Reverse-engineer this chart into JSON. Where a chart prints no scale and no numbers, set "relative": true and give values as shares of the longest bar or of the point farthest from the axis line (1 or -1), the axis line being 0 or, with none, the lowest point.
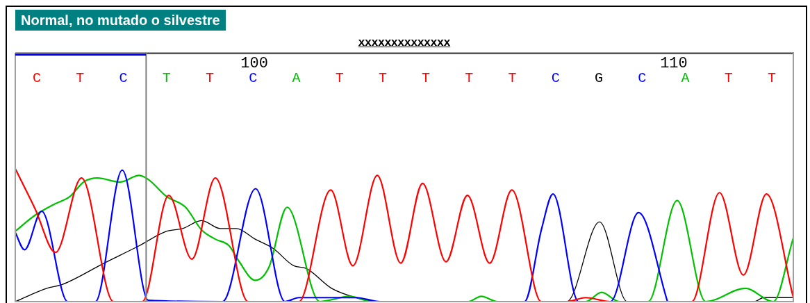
{
  "chart_data": {
    "type": "line",
    "title": "Normal, no mutado o silvestre",
    "subtitle": "xxxxxxxxxxxxxx",
    "relative": true,
    "marker": "none",
    "grid": false,
    "legend": false,
    "xlim": [
      94.3,
      112.85
    ],
    "xticks": [
      100,
      110
    ],
    "series": [
      {
        "color": "#ff0000",
        "x": [
          94.3,
          94.77,
          95.26,
          95.88,
          96.64,
          97.33,
          97.96,
          98.51,
          99.07,
          99.85,
          101.06,
          101.82,
          102.35,
          102.93,
          103.49,
          104.01,
          104.57,
          105.08,
          105.61,
          106.14,
          106.84,
          107.45,
          107.9,
          108.49,
          110.43,
          111.09,
          111.66,
          112.21,
          112.85
        ],
        "values": [
          1.0,
          0.7,
          0.37,
          0.93,
          0,
          0,
          0.8,
          0.32,
          0.93,
          0,
          0,
          0.84,
          0.27,
          0.95,
          0.29,
          0.89,
          0.3,
          0.8,
          0.29,
          0.84,
          0,
          0,
          0.03,
          0,
          0,
          0.82,
          0.2,
          0.81,
          0.03
        ]
      },
      {
        "color": "#0000ff",
        "x": [
          94.3,
          94.52,
          94.93,
          95.55,
          96.21,
          96.85,
          97.47,
          99.24,
          100.03,
          100.73,
          101.06,
          102.43,
          103.0,
          106.44,
          106.85,
          107.12,
          107.73,
          108.49,
          109.16,
          109.85
        ],
        "values": [
          0.52,
          0.39,
          0.68,
          0,
          0,
          0.99,
          0.01,
          0,
          0.85,
          0,
          0.03,
          0.03,
          0,
          0,
          0.55,
          0.81,
          0,
          0,
          0.67,
          0
        ]
      },
      {
        "color": "#00c000",
        "x": [
          94.3,
          94.77,
          95.21,
          95.6,
          95.93,
          96.26,
          96.8,
          97.25,
          97.47,
          97.91,
          98.36,
          98.74,
          99.07,
          99.4,
          99.62,
          100.02,
          100.35,
          100.78,
          101.56,
          102.27,
          102.8,
          105.1,
          105.41,
          105.8,
          107.9,
          108.28,
          108.7,
          109.39,
          110.08,
          110.76,
          111.71,
          112.37,
          112.85
        ],
        "values": [
          0.53,
          0.65,
          0.73,
          0.79,
          0.9,
          0.93,
          0.9,
          0.95,
          0.92,
          0.79,
          0.71,
          0.54,
          0.47,
          0.42,
          0.31,
          0.16,
          0.26,
          0.71,
          0,
          0.04,
          0,
          0,
          0.04,
          0,
          0,
          0.07,
          0,
          0,
          0.76,
          0,
          0.1,
          0,
          0.48
        ]
      },
      {
        "color": "#000000",
        "x": [
          94.3,
          95.05,
          95.43,
          96.42,
          97.25,
          97.91,
          98.29,
          98.74,
          99.19,
          99.57,
          100.02,
          100.45,
          100.94,
          101.23,
          101.84,
          102.43,
          103.0,
          107.45,
          108.23,
          108.89,
          111.92,
          112.14,
          112.85
        ],
        "values": [
          0,
          0.1,
          0.13,
          0.29,
          0.42,
          0.53,
          0.55,
          0.61,
          0.55,
          0.55,
          0.47,
          0.4,
          0.27,
          0.25,
          0.1,
          0.03,
          0,
          0,
          0.6,
          0,
          0,
          0.03,
          0.03
        ]
      }
    ],
    "annotations": [
      "C",
      "T",
      "C",
      "T",
      "T",
      "C",
      "A",
      "T",
      "T",
      "T",
      "T",
      "T",
      "C",
      "G",
      "C",
      "A",
      "T",
      "T"
    ],
    "ref_lines": [
      {
        "axis": "x",
        "value": 97.42,
        "color": "#808080"
      }
    ]
  }
}
